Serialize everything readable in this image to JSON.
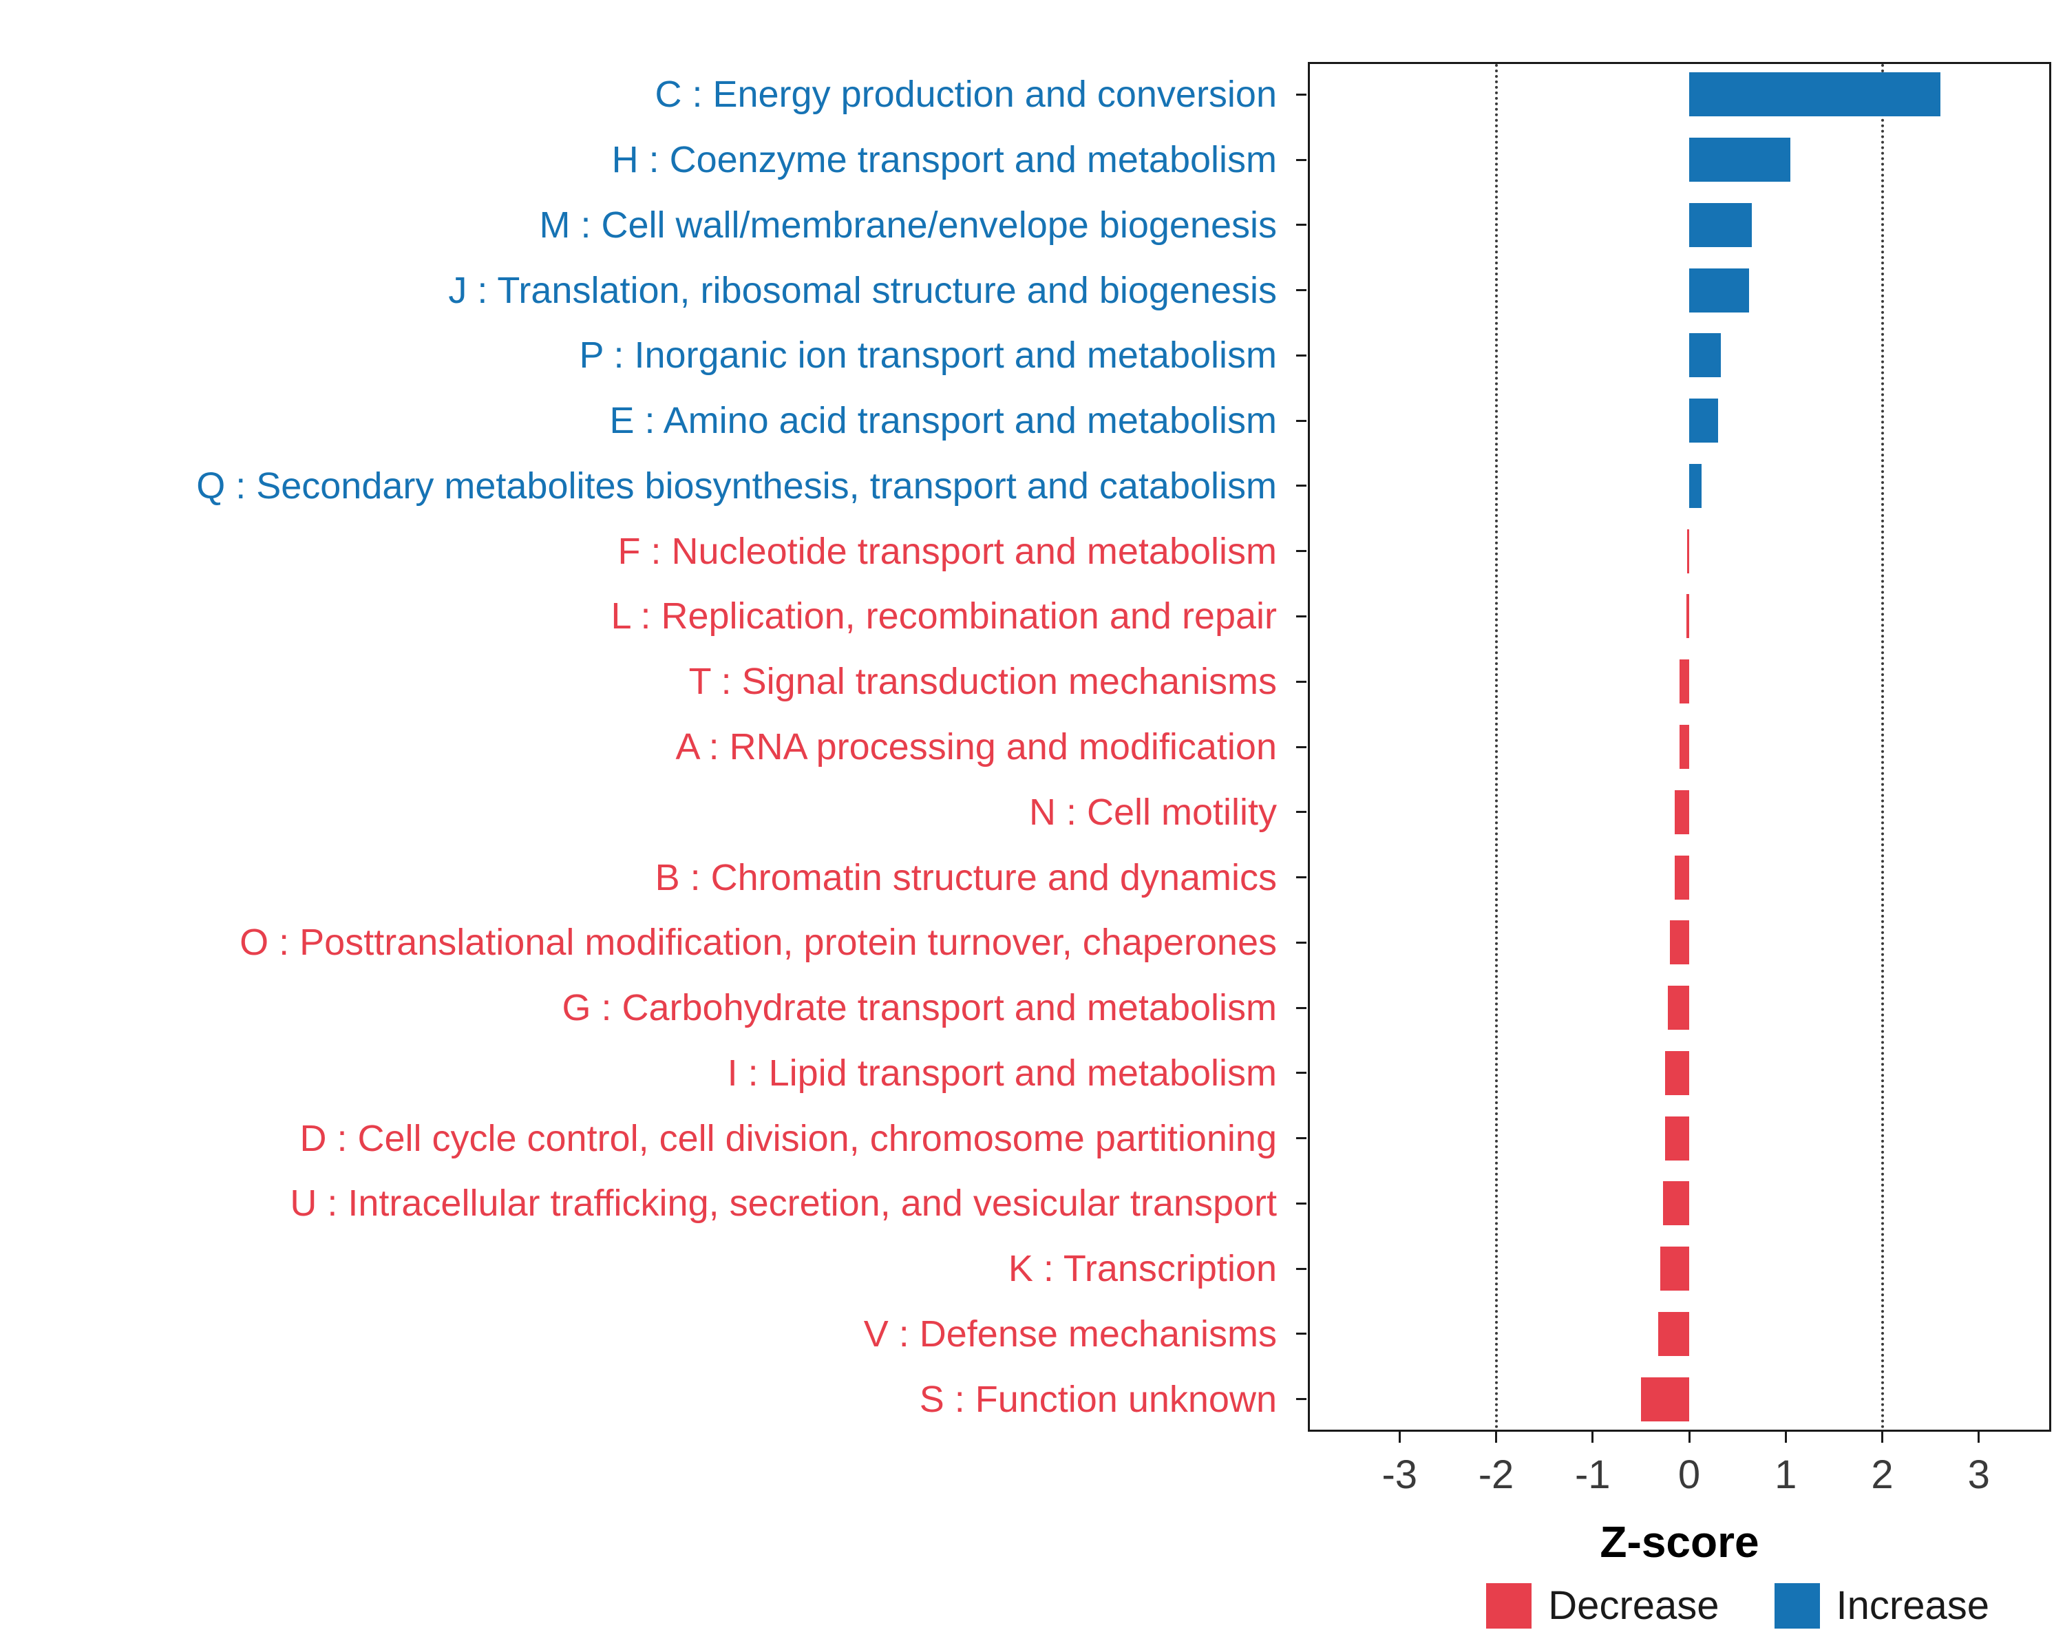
{
  "colors": {
    "increase": "#1673B4",
    "decrease": "#E73F4C",
    "panel_border": "#1a1a1a",
    "refline": "#3a3a3a",
    "tick_text": "#3a3a3a"
  },
  "legend": {
    "items": [
      {
        "label": "Decrease",
        "color_key": "decrease"
      },
      {
        "label": "Increase",
        "color_key": "increase"
      }
    ]
  },
  "chart_data": {
    "type": "bar",
    "orientation": "horizontal",
    "title": "",
    "xlabel": "Z-score",
    "ylabel": "",
    "xlim": [
      -3.95,
      3.75
    ],
    "xticks": [
      -3,
      -2,
      -1,
      0,
      1,
      2,
      3
    ],
    "reference_lines": [
      -2,
      2
    ],
    "grid": "reference-lines-only",
    "legend_position": "bottom-right",
    "rows": [
      {
        "label": "C : Energy production and conversion",
        "value": 2.6,
        "group": "Increase"
      },
      {
        "label": "H : Coenzyme transport and metabolism",
        "value": 1.05,
        "group": "Increase"
      },
      {
        "label": "M : Cell wall/membrane/envelope biogenesis",
        "value": 0.65,
        "group": "Increase"
      },
      {
        "label": "J : Translation, ribosomal structure and biogenesis",
        "value": 0.62,
        "group": "Increase"
      },
      {
        "label": "P : Inorganic ion transport and metabolism",
        "value": 0.33,
        "group": "Increase"
      },
      {
        "label": "E : Amino acid transport and metabolism",
        "value": 0.3,
        "group": "Increase"
      },
      {
        "label": "Q : Secondary metabolites biosynthesis, transport and catabolism",
        "value": 0.13,
        "group": "Increase"
      },
      {
        "label": "F : Nucleotide transport and metabolism",
        "value": -0.02,
        "group": "Decrease"
      },
      {
        "label": "L : Replication, recombination and repair",
        "value": -0.03,
        "group": "Decrease"
      },
      {
        "label": "T : Signal transduction mechanisms",
        "value": -0.1,
        "group": "Decrease"
      },
      {
        "label": "A : RNA processing and modification",
        "value": -0.1,
        "group": "Decrease"
      },
      {
        "label": "N : Cell motility",
        "value": -0.15,
        "group": "Decrease"
      },
      {
        "label": "B : Chromatin structure and dynamics",
        "value": -0.15,
        "group": "Decrease"
      },
      {
        "label": "O : Posttranslational modification, protein turnover, chaperones",
        "value": -0.2,
        "group": "Decrease"
      },
      {
        "label": "G : Carbohydrate transport and metabolism",
        "value": -0.22,
        "group": "Decrease"
      },
      {
        "label": "I : Lipid transport and metabolism",
        "value": -0.25,
        "group": "Decrease"
      },
      {
        "label": "D : Cell cycle control, cell division, chromosome partitioning",
        "value": -0.25,
        "group": "Decrease"
      },
      {
        "label": "U : Intracellular trafficking, secretion, and vesicular transport",
        "value": -0.27,
        "group": "Decrease"
      },
      {
        "label": "K : Transcription",
        "value": -0.3,
        "group": "Decrease"
      },
      {
        "label": "V : Defense mechanisms",
        "value": -0.32,
        "group": "Decrease"
      },
      {
        "label": "S : Function unknown",
        "value": -0.5,
        "group": "Decrease"
      }
    ]
  }
}
